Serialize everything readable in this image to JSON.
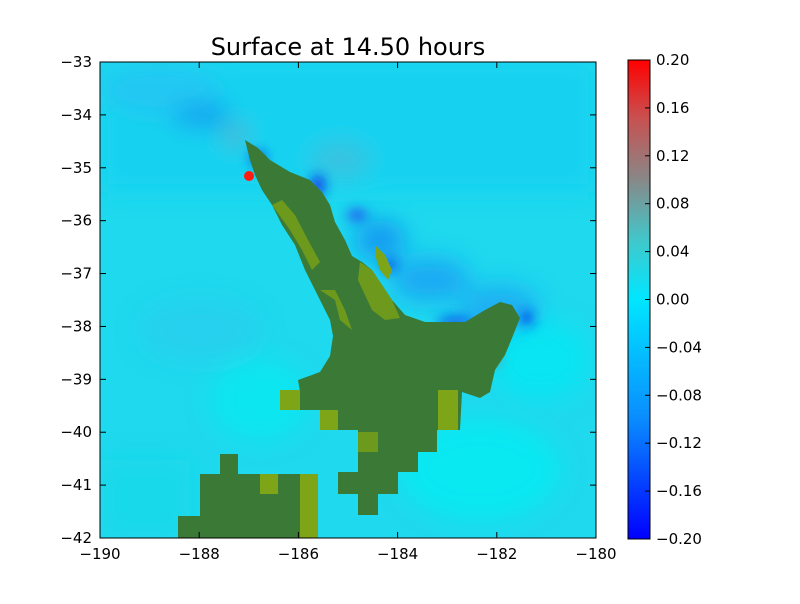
{
  "chart_data": {
    "type": "heatmap",
    "title": "Surface at 14.50 hours",
    "xlabel": "",
    "ylabel": "",
    "xlim": [
      -190,
      -180
    ],
    "ylim": [
      -42,
      -33
    ],
    "x_ticks": [
      -190,
      -188,
      -186,
      -184,
      -182,
      -180
    ],
    "y_ticks": [
      -33,
      -34,
      -35,
      -36,
      -37,
      -38,
      -39,
      -40,
      -41,
      -42
    ],
    "x_tick_labels": [
      "−190",
      "−188",
      "−186",
      "−184",
      "−182",
      "−180"
    ],
    "y_tick_labels": [
      "−33",
      "−34",
      "−35",
      "−36",
      "−37",
      "−38",
      "−39",
      "−40",
      "−41",
      "−42"
    ],
    "colorbar": {
      "min": -0.2,
      "max": 0.2,
      "ticks": [
        0.2,
        0.16,
        0.12,
        0.08,
        0.04,
        0.0,
        -0.04,
        -0.08,
        -0.12,
        -0.16,
        -0.2
      ],
      "tick_labels": [
        "0.20",
        "0.16",
        "0.12",
        "0.08",
        "0.04",
        "0.00",
        "−0.04",
        "−0.08",
        "−0.12",
        "−0.16",
        "−0.20"
      ],
      "colors": [
        "#0000ff",
        "#00e6ff",
        "#cc4444",
        "#ff0000"
      ]
    },
    "colors": {
      "sea": "#1fd9ee",
      "deep_sea": "#00e5f5",
      "land": "#3a7a36",
      "land_light": "#7ea518",
      "low": "#0a20e8",
      "high": "#ff1a10"
    }
  }
}
